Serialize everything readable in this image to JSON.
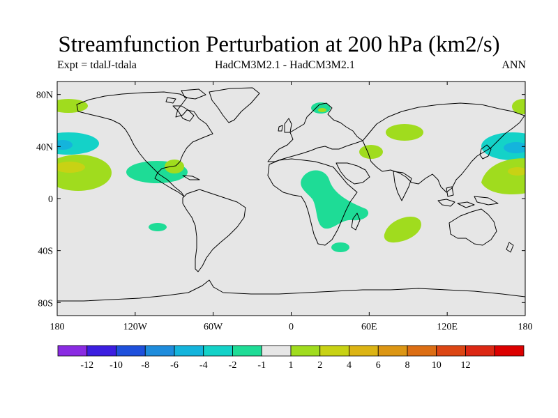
{
  "title": "Streamfunction Perturbation at 200 hPa (km2/s)",
  "subtitle_left": "Expt = tdalJ-tdala",
  "subtitle_center": "HadCM3M2.1 - HadCM3M2.1",
  "subtitle_right": "ANN",
  "lat_ticks": [
    {
      "label": "80N",
      "lat": 80
    },
    {
      "label": "40N",
      "lat": 40
    },
    {
      "label": "0",
      "lat": 0
    },
    {
      "label": "40S",
      "lat": -40
    },
    {
      "label": "80S",
      "lat": -80
    }
  ],
  "lon_ticks": [
    {
      "label": "180",
      "lon": -180
    },
    {
      "label": "120W",
      "lon": -120
    },
    {
      "label": "60W",
      "lon": -60
    },
    {
      "label": "0",
      "lon": 0
    },
    {
      "label": "60E",
      "lon": 60
    },
    {
      "label": "120E",
      "lon": 120
    },
    {
      "label": "180",
      "lon": 180
    }
  ],
  "colorbar": {
    "colors": [
      "#8a2be2",
      "#3c1ee0",
      "#1e50dc",
      "#1e8cdc",
      "#14b4dc",
      "#14d2c8",
      "#1edc96",
      "#e6e6e6",
      "#a0dc1e",
      "#c8d214",
      "#dcb414",
      "#dc9614",
      "#dc6e14",
      "#dc4614",
      "#dc2814",
      "#dc0000"
    ],
    "labels": [
      "-12",
      "-10",
      "-8",
      "-6",
      "-4",
      "-2",
      "-1",
      "1",
      "2",
      "4",
      "6",
      "8",
      "10",
      "12"
    ]
  },
  "chart_data": {
    "type": "map",
    "projection": "cylindrical equidistant",
    "lon_range": [
      -180,
      180
    ],
    "lat_range": [
      -90,
      90
    ],
    "background_color": "#e6e6e6",
    "anomalies": [
      {
        "lon": -168,
        "lat": 73,
        "value": 2
      },
      {
        "lon": -168,
        "lat": 45,
        "value": -2
      },
      {
        "lon": -172,
        "lat": 42,
        "value": -4
      },
      {
        "lon": -160,
        "lat": 25,
        "value": 2
      },
      {
        "lon": -168,
        "lat": 25,
        "value": 4
      },
      {
        "lon": -95,
        "lat": 23,
        "value": -2
      },
      {
        "lon": -82,
        "lat": 25,
        "value": 2
      },
      {
        "lon": -102,
        "lat": -22,
        "value": -2
      },
      {
        "lon": 23,
        "lat": 70,
        "value": -2
      },
      {
        "lon": 23,
        "lat": 70,
        "value": 2
      },
      {
        "lon": 80,
        "lat": 52,
        "value": 2
      },
      {
        "lon": 60,
        "lat": 38,
        "value": 2
      },
      {
        "lon": 28,
        "lat": 2,
        "value": -2
      },
      {
        "lon": 38,
        "lat": -38,
        "value": -2
      },
      {
        "lon": 88,
        "lat": -22,
        "value": 2
      },
      {
        "lon": 178,
        "lat": 72,
        "value": 2
      },
      {
        "lon": 170,
        "lat": 42,
        "value": -2
      },
      {
        "lon": 172,
        "lat": 40,
        "value": -4
      },
      {
        "lon": 165,
        "lat": 20,
        "value": 2
      },
      {
        "lon": 172,
        "lat": 22,
        "value": 4
      }
    ]
  }
}
